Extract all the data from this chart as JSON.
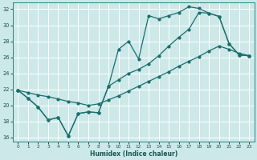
{
  "xlabel": "Humidex (Indice chaleur)",
  "bg_color": "#cce8e8",
  "line_color": "#1a6e6e",
  "grid_color": "#ffffff",
  "xlim": [
    -0.5,
    23.5
  ],
  "ylim": [
    15.5,
    32.8
  ],
  "xtick_vals": [
    0,
    1,
    2,
    3,
    4,
    5,
    6,
    7,
    8,
    9,
    10,
    11,
    12,
    13,
    14,
    15,
    16,
    17,
    18,
    19,
    20,
    21,
    22,
    23
  ],
  "ytick_vals": [
    16,
    18,
    20,
    22,
    24,
    26,
    28,
    30,
    32
  ],
  "curve_jagged_x": [
    0,
    1,
    2,
    3,
    4,
    5,
    6,
    7,
    8,
    9,
    10,
    11,
    12,
    13,
    14,
    15,
    16,
    17,
    18,
    19,
    20,
    21,
    22,
    23
  ],
  "curve_jagged_y": [
    21.9,
    20.9,
    19.8,
    18.2,
    18.5,
    16.2,
    19.0,
    19.2,
    19.1,
    22.4,
    27.0,
    28.0,
    25.8,
    31.2,
    30.8,
    31.2,
    31.6,
    32.3,
    32.1,
    31.5,
    31.1,
    27.7,
    26.3,
    26.2
  ],
  "curve_smooth_x": [
    0,
    1,
    2,
    3,
    4,
    5,
    6,
    7,
    8,
    9,
    10,
    11,
    12,
    13,
    14,
    15,
    16,
    17,
    18,
    19,
    20,
    21,
    22,
    23
  ],
  "curve_smooth_y": [
    21.9,
    20.9,
    19.8,
    18.2,
    18.5,
    16.2,
    19.0,
    19.2,
    19.1,
    22.4,
    23.2,
    24.0,
    24.5,
    25.2,
    26.2,
    27.4,
    28.5,
    29.5,
    31.6,
    31.5,
    31.1,
    27.7,
    26.3,
    26.2
  ],
  "curve_straight_x": [
    0,
    1,
    2,
    3,
    4,
    5,
    6,
    7,
    8,
    9,
    10,
    11,
    12,
    13,
    14,
    15,
    16,
    17,
    18,
    19,
    20,
    21,
    22,
    23
  ],
  "curve_straight_y": [
    21.9,
    21.6,
    21.3,
    21.1,
    20.8,
    20.5,
    20.3,
    20.0,
    20.2,
    20.7,
    21.2,
    21.8,
    22.4,
    23.0,
    23.6,
    24.2,
    24.9,
    25.5,
    26.1,
    26.8,
    27.4,
    27.0,
    26.5,
    26.2
  ]
}
